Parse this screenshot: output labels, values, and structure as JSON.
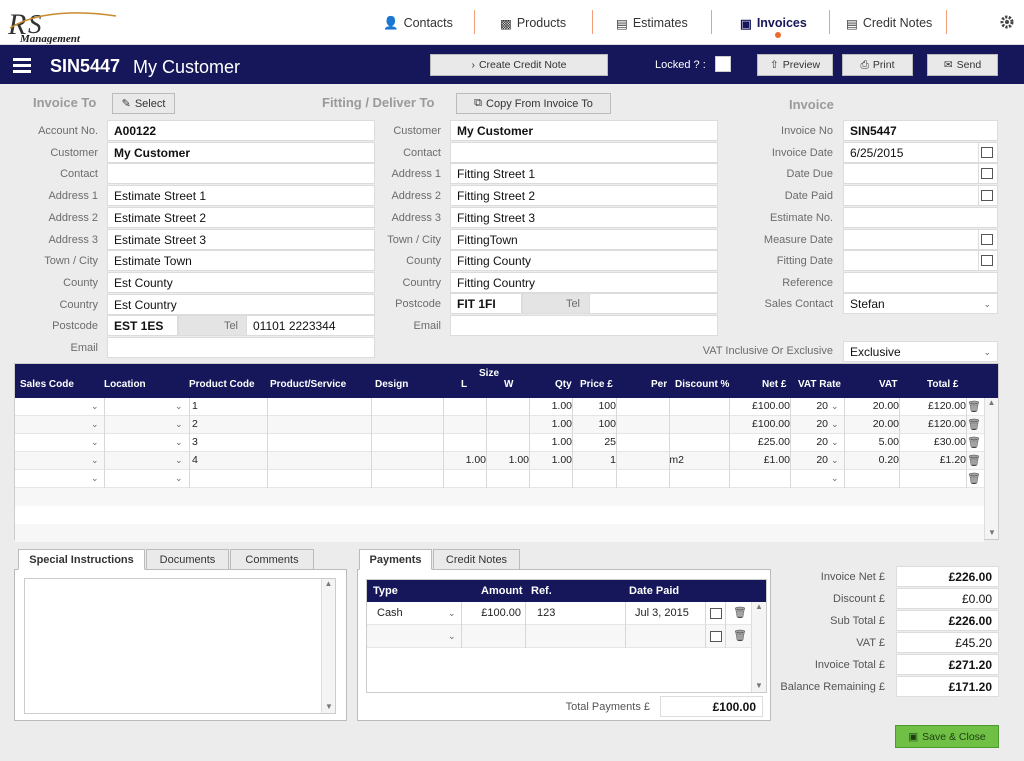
{
  "nav": {
    "logo_text": "RS Management",
    "items": [
      {
        "label": "Contacts",
        "icon": "person-icon"
      },
      {
        "label": "Products",
        "icon": "box-icon"
      },
      {
        "label": "Estimates",
        "icon": "list-icon"
      },
      {
        "label": "Invoices",
        "icon": "invoice-icon",
        "active": true
      },
      {
        "label": "Credit Notes",
        "icon": "list-icon"
      }
    ]
  },
  "header": {
    "invoice_number": "SIN5447",
    "customer_name": "My Customer",
    "create_credit_note": "Create Credit Note",
    "locked_label": "Locked ? :",
    "preview": "Preview",
    "print": "Print",
    "send": "Send"
  },
  "invoice_to": {
    "title": "Invoice To",
    "select_button": "Select",
    "fields": [
      {
        "label": "Account No.",
        "value": "A00122",
        "bold": true
      },
      {
        "label": "Customer",
        "value": "My Customer",
        "bold": true
      },
      {
        "label": "Contact",
        "value": ""
      },
      {
        "label": "Address 1",
        "value": "Estimate Street 1"
      },
      {
        "label": "Address 2",
        "value": "Estimate Street 2"
      },
      {
        "label": "Address 3",
        "value": "Estimate Street 3"
      },
      {
        "label": "Town / City",
        "value": "Estimate Town"
      },
      {
        "label": "County",
        "value": "Est County"
      },
      {
        "label": "Country",
        "value": "Est Country"
      }
    ],
    "postcode_label": "Postcode",
    "postcode": "EST 1ES",
    "tel_label": "Tel",
    "tel": "01101 2223344",
    "email_label": "Email",
    "email": ""
  },
  "deliver_to": {
    "title": "Fitting / Deliver To",
    "copy_button": "Copy From Invoice To",
    "fields": [
      {
        "label": "Customer",
        "value": "My Customer",
        "bold": true
      },
      {
        "label": "Contact",
        "value": ""
      },
      {
        "label": "Address 1",
        "value": "Fitting Street 1"
      },
      {
        "label": "Address 2",
        "value": "Fitting Street 2"
      },
      {
        "label": "Address 3",
        "value": "Fitting Street 3"
      },
      {
        "label": "Town / City",
        "value": "FittingTown"
      },
      {
        "label": "County",
        "value": "Fitting County"
      },
      {
        "label": "Country",
        "value": "Fitting Country"
      }
    ],
    "postcode_label": "Postcode",
    "postcode": "FIT 1FI",
    "tel_label": "Tel",
    "tel": "",
    "email_label": "Email",
    "email": ""
  },
  "invoice": {
    "title": "Invoice",
    "fields": [
      {
        "label": "Invoice No",
        "value": "SIN5447",
        "bold": true,
        "cal": false
      },
      {
        "label": "Invoice Date",
        "value": "6/25/2015",
        "cal": true
      },
      {
        "label": "Date Due",
        "value": "",
        "cal": true
      },
      {
        "label": "Date Paid",
        "value": "",
        "cal": true
      },
      {
        "label": "Estimate No.",
        "value": "",
        "cal": false
      },
      {
        "label": "Measure Date",
        "value": "",
        "cal": true
      },
      {
        "label": "Fitting Date",
        "value": "",
        "cal": true
      },
      {
        "label": "Reference",
        "value": "",
        "cal": false
      }
    ],
    "sales_contact_label": "Sales Contact",
    "sales_contact": "Stefan",
    "vat_mode_label": "VAT Inclusive Or Exclusive",
    "vat_mode": "Exclusive"
  },
  "lines": {
    "size_header": "Size",
    "columns": [
      "Sales Code",
      "Location",
      "Product Code",
      "Product/Service",
      "Design",
      "L",
      "W",
      "Qty",
      "Price £",
      "Per",
      "Discount %",
      "Net £",
      "VAT Rate",
      "VAT",
      "Total £"
    ],
    "rows": [
      {
        "product_code": "1",
        "l": "",
        "w": "",
        "qty": "1.00",
        "price": "100",
        "per": "",
        "discount": "",
        "net": "£100.00",
        "vat_rate": "20",
        "vat": "20.00",
        "total": "£120.00"
      },
      {
        "product_code": "2",
        "l": "",
        "w": "",
        "qty": "1.00",
        "price": "100",
        "per": "",
        "discount": "",
        "net": "£100.00",
        "vat_rate": "20",
        "vat": "20.00",
        "total": "£120.00"
      },
      {
        "product_code": "3",
        "l": "",
        "w": "",
        "qty": "1.00",
        "price": "25",
        "per": "",
        "discount": "",
        "net": "£25.00",
        "vat_rate": "20",
        "vat": "5.00",
        "total": "£30.00"
      },
      {
        "product_code": "4",
        "l": "1.00",
        "w": "1.00",
        "qty": "1.00",
        "price": "1",
        "per": "m2",
        "discount": "",
        "net": "£1.00",
        "vat_rate": "20",
        "vat": "0.20",
        "total": "£1.20"
      },
      {
        "product_code": "",
        "l": "",
        "w": "",
        "qty": "",
        "price": "",
        "per": "",
        "discount": "",
        "net": "",
        "vat_rate": "",
        "vat": "",
        "total": ""
      }
    ]
  },
  "notes_tabs": [
    "Special Instructions",
    "Documents",
    "Comments"
  ],
  "payments": {
    "tabs": [
      "Payments",
      "Credit Notes"
    ],
    "columns": [
      "Type",
      "Amount",
      "Ref.",
      "Date Paid"
    ],
    "rows": [
      {
        "type": "Cash",
        "amount": "£100.00",
        "ref": "123",
        "date": "Jul 3, 2015"
      },
      {
        "type": "",
        "amount": "",
        "ref": "",
        "date": ""
      }
    ],
    "total_label": "Total Payments £",
    "total": "£100.00"
  },
  "totals": [
    {
      "label": "Invoice Net £",
      "value": "£226.00",
      "bold": true
    },
    {
      "label": "Discount £",
      "value": "£0.00",
      "bold": false
    },
    {
      "label": "Sub Total £",
      "value": "£226.00",
      "bold": true
    },
    {
      "label": "VAT £",
      "value": "£45.20",
      "bold": false
    },
    {
      "label": "Invoice Total £",
      "value": "£271.20",
      "bold": true
    },
    {
      "label": "Balance Remaining £",
      "value": "£171.20",
      "bold": true
    }
  ],
  "save_close": "Save & Close",
  "colors": {
    "nav_bg": "#15175a",
    "accent": "#e86a2c",
    "save_green": "#6fc045"
  }
}
